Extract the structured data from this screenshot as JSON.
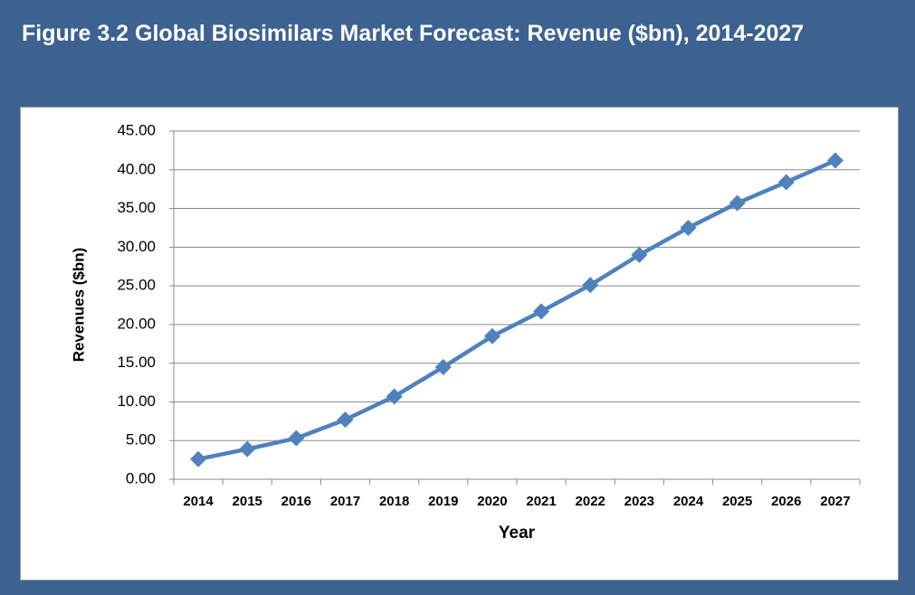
{
  "chart_data": {
    "type": "line",
    "title": "Figure 3.2 Global Biosimilars Market Forecast: Revenue ($bn), 2014-2027",
    "x_label": "Year",
    "y_label": "Revenues ($bn)",
    "categories": [
      "2014",
      "2015",
      "2016",
      "2017",
      "2018",
      "2019",
      "2020",
      "2021",
      "2022",
      "2023",
      "2024",
      "2025",
      "2026",
      "2027"
    ],
    "series": [
      {
        "name": "Revenue",
        "color": "#4f81bd",
        "values": [
          2.6,
          3.9,
          5.3,
          7.7,
          10.7,
          14.5,
          18.5,
          21.7,
          25.1,
          29.0,
          32.5,
          35.7,
          38.4,
          41.2
        ]
      }
    ],
    "ylim": [
      0,
      45
    ],
    "yticks": [
      {
        "value": 0,
        "label": "0.00"
      },
      {
        "value": 5,
        "label": "5.00"
      },
      {
        "value": 10,
        "label": "10.00"
      },
      {
        "value": 15,
        "label": "15.00"
      },
      {
        "value": 20,
        "label": "20.00"
      },
      {
        "value": 25,
        "label": "25.00"
      },
      {
        "value": 30,
        "label": "30.00"
      },
      {
        "value": 35,
        "label": "35.00"
      },
      {
        "value": 40,
        "label": "40.00"
      },
      {
        "value": 45,
        "label": "45.00"
      }
    ],
    "grid": true
  }
}
